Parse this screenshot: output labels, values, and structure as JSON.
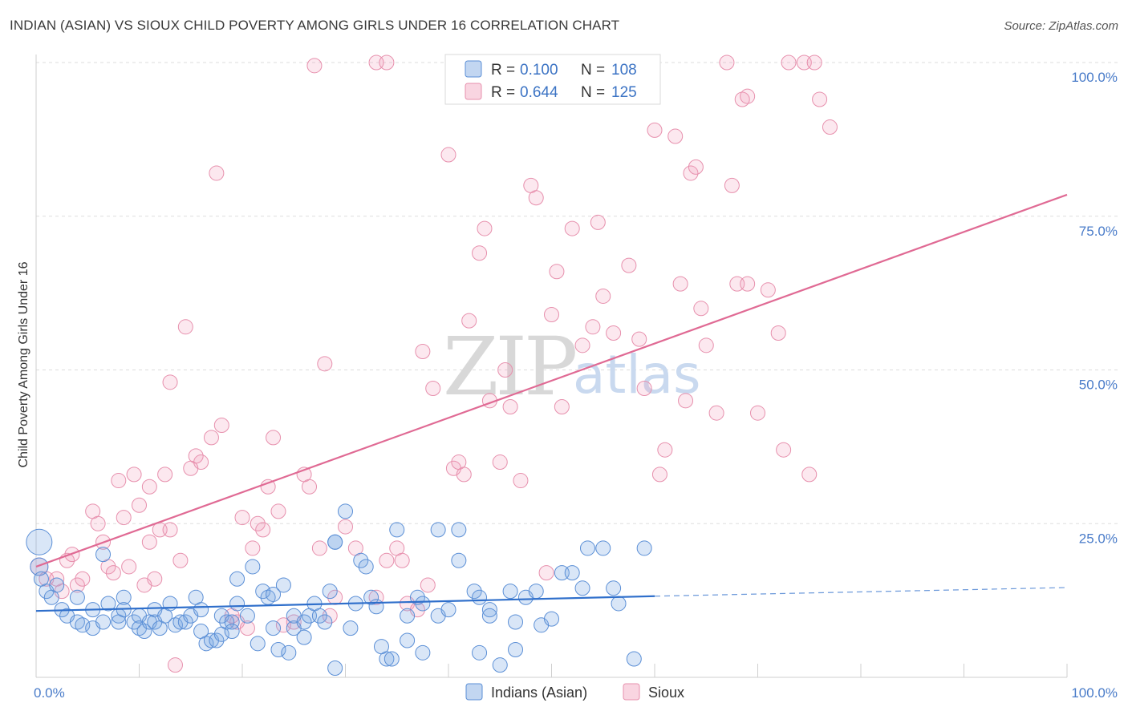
{
  "title": "INDIAN (ASIAN) VS SIOUX CHILD POVERTY AMONG GIRLS UNDER 16 CORRELATION CHART",
  "source": "Source: ZipAtlas.com",
  "watermark": {
    "zip": "ZIP",
    "atlas": "atlas"
  },
  "colors": {
    "indians_fill": "rgba(120,165,225,0.28)",
    "indians_stroke": "#5b8fd6",
    "indians_line": "#2f6fcb",
    "sioux_fill": "rgba(240,150,180,0.22)",
    "sioux_stroke": "#e790ad",
    "sioux_line": "#e06a94",
    "grid": "#dddddd",
    "tick": "#4a7cc9"
  },
  "legend": {
    "rows": [
      {
        "r_label": "R = ",
        "r_value": "0.100",
        "n_label": "N = ",
        "n_value": "108"
      },
      {
        "r_label": "R = ",
        "r_value": "0.644",
        "n_label": "N = ",
        "n_value": "125"
      }
    ]
  },
  "bottom_legend": [
    "Indians (Asian)",
    "Sioux"
  ],
  "chart_data": {
    "type": "scatter",
    "title": "INDIAN (ASIAN) VS SIOUX CHILD POVERTY AMONG GIRLS UNDER 16 CORRELATION CHART",
    "xlabel": "",
    "ylabel": "Child Poverty Among Girls Under 16",
    "xlim": [
      0,
      100
    ],
    "ylim": [
      0,
      100
    ],
    "x_tick_labels": [
      "0.0%",
      "100.0%"
    ],
    "y_tick_labels": [
      "25.0%",
      "50.0%",
      "75.0%",
      "100.0%"
    ],
    "y_ticks": [
      25,
      50,
      75,
      100
    ],
    "grid": true,
    "legend_position": "top-center",
    "series": [
      {
        "name": "Indians (Asian)",
        "R": 0.1,
        "N": 108,
        "trend": {
          "x0": 0,
          "y0": 10.8,
          "x1": 60,
          "y1": 13.2,
          "dash_x1": 100,
          "dash_y1": 14.6
        },
        "points": [
          [
            0.3,
            22,
            16
          ],
          [
            0.3,
            18,
            11
          ],
          [
            0.5,
            16,
            9
          ],
          [
            1,
            14,
            9
          ],
          [
            1.5,
            13,
            9
          ],
          [
            2,
            15,
            9
          ],
          [
            2.5,
            11,
            9
          ],
          [
            3,
            10,
            9
          ],
          [
            4,
            13,
            9
          ],
          [
            4,
            9,
            9
          ],
          [
            4.5,
            8.5,
            9
          ],
          [
            5.5,
            8,
            9
          ],
          [
            5.5,
            11,
            9
          ],
          [
            6.5,
            9,
            9
          ],
          [
            6.5,
            20,
            9
          ],
          [
            7,
            12,
            9
          ],
          [
            8,
            10,
            9
          ],
          [
            8,
            9,
            9
          ],
          [
            8.5,
            13,
            9
          ],
          [
            8.5,
            11,
            9
          ],
          [
            9.5,
            9,
            9
          ],
          [
            10,
            10,
            9
          ],
          [
            10,
            8,
            9
          ],
          [
            10.5,
            7.5,
            9
          ],
          [
            11,
            9,
            9
          ],
          [
            11.5,
            11,
            9
          ],
          [
            11.5,
            9,
            9
          ],
          [
            12,
            8,
            9
          ],
          [
            12.5,
            10,
            9
          ],
          [
            13.5,
            8.5,
            9
          ],
          [
            13,
            12,
            9
          ],
          [
            14,
            9,
            9
          ],
          [
            14.5,
            9,
            9
          ],
          [
            15,
            10,
            9
          ],
          [
            15.5,
            13,
            9
          ],
          [
            16,
            11,
            9
          ],
          [
            16,
            7.5,
            9
          ],
          [
            16.5,
            5.5,
            9
          ],
          [
            17,
            6,
            9
          ],
          [
            17.5,
            6,
            9
          ],
          [
            18,
            7,
            9
          ],
          [
            18,
            10,
            9
          ],
          [
            18.5,
            9,
            9
          ],
          [
            19,
            9,
            9
          ],
          [
            19,
            7.5,
            9
          ],
          [
            19.5,
            12,
            9
          ],
          [
            19.5,
            16,
            9
          ],
          [
            20.5,
            10,
            9
          ],
          [
            21,
            18,
            9
          ],
          [
            21.5,
            5.5,
            9
          ],
          [
            22,
            14,
            9
          ],
          [
            22.5,
            13,
            9
          ],
          [
            23,
            13.5,
            9
          ],
          [
            23,
            8,
            9
          ],
          [
            23.5,
            4.5,
            9
          ],
          [
            24,
            15,
            9
          ],
          [
            24.5,
            4,
            9
          ],
          [
            25,
            8,
            9
          ],
          [
            25,
            10,
            9
          ],
          [
            26,
            9,
            9
          ],
          [
            26,
            6.5,
            9
          ],
          [
            26.5,
            10,
            9
          ],
          [
            27,
            12,
            9
          ],
          [
            27.5,
            10,
            9
          ],
          [
            28,
            9,
            9
          ],
          [
            28.5,
            14,
            9
          ],
          [
            29,
            1.5,
            9
          ],
          [
            29,
            22,
            9
          ],
          [
            29,
            22,
            9
          ],
          [
            30,
            27,
            9
          ],
          [
            30.5,
            8,
            9
          ],
          [
            31,
            12,
            9
          ],
          [
            31.5,
            19,
            9
          ],
          [
            32,
            18,
            9
          ],
          [
            32.5,
            13,
            9
          ],
          [
            33,
            11.5,
            9
          ],
          [
            33.5,
            5,
            9
          ],
          [
            34,
            3,
            9
          ],
          [
            34.5,
            3,
            9
          ],
          [
            35,
            24,
            9
          ],
          [
            36,
            10,
            9
          ],
          [
            36,
            6,
            9
          ],
          [
            37,
            13,
            9
          ],
          [
            37.5,
            4,
            9
          ],
          [
            37.5,
            12,
            9
          ],
          [
            39,
            24,
            9
          ],
          [
            39,
            10,
            9
          ],
          [
            40,
            11,
            9
          ],
          [
            41,
            19,
            9
          ],
          [
            41,
            24,
            9
          ],
          [
            42.5,
            14,
            9
          ],
          [
            43,
            13,
            9
          ],
          [
            43,
            4,
            9
          ],
          [
            44,
            11,
            9
          ],
          [
            44,
            10,
            9
          ],
          [
            45,
            2,
            9
          ],
          [
            46,
            14,
            9
          ],
          [
            46.5,
            9,
            9
          ],
          [
            46.5,
            4.5,
            9
          ],
          [
            47.5,
            13,
            9
          ],
          [
            48.5,
            14,
            9
          ],
          [
            49,
            8.5,
            9
          ],
          [
            50,
            9.5,
            9
          ],
          [
            51,
            17,
            9
          ],
          [
            52,
            17,
            9
          ],
          [
            53,
            14.5,
            9
          ],
          [
            53.5,
            21,
            9
          ],
          [
            55,
            21,
            9
          ],
          [
            56,
            14.5,
            9
          ],
          [
            56.5,
            12,
            9
          ],
          [
            58,
            3,
            9
          ],
          [
            59,
            21,
            9
          ]
        ]
      },
      {
        "name": "Sioux",
        "R": 0.644,
        "N": 125,
        "trend": {
          "x0": 0,
          "y0": 18.0,
          "x1": 100,
          "y1": 78.5
        },
        "points": [
          [
            0.3,
            18,
            11
          ],
          [
            1,
            16,
            9
          ],
          [
            2,
            16,
            9
          ],
          [
            2.5,
            14,
            9
          ],
          [
            3,
            19,
            9
          ],
          [
            3.5,
            20,
            9
          ],
          [
            4,
            15,
            9
          ],
          [
            4.5,
            16,
            9
          ],
          [
            5.5,
            27,
            9
          ],
          [
            6,
            25,
            9
          ],
          [
            6.5,
            22,
            9
          ],
          [
            7,
            18,
            9
          ],
          [
            7.5,
            17,
            9
          ],
          [
            8,
            32,
            9
          ],
          [
            8.5,
            26,
            9
          ],
          [
            9,
            18,
            9
          ],
          [
            9.5,
            33,
            9
          ],
          [
            10,
            28,
            9
          ],
          [
            10.5,
            15,
            9
          ],
          [
            11,
            22,
            9
          ],
          [
            11,
            31,
            9
          ],
          [
            11.5,
            16,
            9
          ],
          [
            12,
            24,
            9
          ],
          [
            12.5,
            33,
            9
          ],
          [
            13,
            24,
            9
          ],
          [
            13,
            48,
            9
          ],
          [
            13.5,
            2,
            9
          ],
          [
            14,
            19,
            9
          ],
          [
            14.5,
            57,
            9
          ],
          [
            15,
            34,
            9
          ],
          [
            15.5,
            36,
            9
          ],
          [
            16,
            35,
            9
          ],
          [
            17,
            39,
            9
          ],
          [
            17.5,
            82,
            9
          ],
          [
            18,
            41,
            9
          ],
          [
            19,
            10,
            9
          ],
          [
            19.5,
            9,
            9
          ],
          [
            20,
            26,
            9
          ],
          [
            20.5,
            8,
            9
          ],
          [
            21,
            21,
            9
          ],
          [
            21.5,
            25,
            9
          ],
          [
            22,
            24,
            9
          ],
          [
            22.5,
            31,
            9
          ],
          [
            23,
            39,
            9
          ],
          [
            23.5,
            27,
            9
          ],
          [
            24,
            8.5,
            9
          ],
          [
            25,
            9,
            9
          ],
          [
            26,
            33,
            9
          ],
          [
            26.5,
            31,
            9
          ],
          [
            27,
            99.5,
            9
          ],
          [
            27.5,
            21,
            9
          ],
          [
            28,
            51,
            9
          ],
          [
            28.5,
            10,
            9
          ],
          [
            29,
            13,
            9
          ],
          [
            30,
            24.5,
            9
          ],
          [
            31,
            21,
            9
          ],
          [
            33,
            100,
            9
          ],
          [
            33,
            13,
            9
          ],
          [
            34,
            100,
            9
          ],
          [
            34,
            19,
            9
          ],
          [
            35,
            21,
            9
          ],
          [
            35.5,
            19,
            9
          ],
          [
            36,
            12,
            9
          ],
          [
            37,
            11,
            9
          ],
          [
            37.5,
            53,
            9
          ],
          [
            38,
            15,
            9
          ],
          [
            38.5,
            47,
            9
          ],
          [
            40,
            85,
            9
          ],
          [
            40.5,
            34,
            9
          ],
          [
            41,
            35,
            9
          ],
          [
            41.5,
            33,
            9
          ],
          [
            42,
            58,
            9
          ],
          [
            43,
            69,
            9
          ],
          [
            43.5,
            73,
            9
          ],
          [
            44,
            45,
            9
          ],
          [
            45,
            35,
            9
          ],
          [
            45.5,
            50,
            9
          ],
          [
            46,
            44,
            9
          ],
          [
            47,
            32,
            9
          ],
          [
            48,
            80,
            9
          ],
          [
            48.5,
            78,
            9
          ],
          [
            49.5,
            17,
            9
          ],
          [
            50,
            59,
            9
          ],
          [
            50.5,
            66,
            9
          ],
          [
            51,
            44,
            9
          ],
          [
            52,
            73,
            9
          ],
          [
            53,
            54,
            9
          ],
          [
            54,
            57,
            9
          ],
          [
            54.5,
            74,
            9
          ],
          [
            55,
            62,
            9
          ],
          [
            56,
            56,
            9
          ],
          [
            57,
            100,
            9
          ],
          [
            57.5,
            67,
            9
          ],
          [
            58.5,
            55,
            9
          ],
          [
            59,
            47,
            9
          ],
          [
            60,
            89,
            9
          ],
          [
            60.5,
            33,
            9
          ],
          [
            61,
            37,
            9
          ],
          [
            62,
            88,
            9
          ],
          [
            62.5,
            64,
            9
          ],
          [
            63,
            45,
            9
          ],
          [
            63.5,
            82,
            9
          ],
          [
            64,
            83,
            9
          ],
          [
            64.5,
            60,
            9
          ],
          [
            65,
            54,
            9
          ],
          [
            66,
            43,
            9
          ],
          [
            67,
            100,
            9
          ],
          [
            67.5,
            80,
            9
          ],
          [
            68,
            64,
            9
          ],
          [
            68.5,
            94,
            9
          ],
          [
            69,
            94.5,
            9
          ],
          [
            69,
            64,
            9
          ],
          [
            70,
            43,
            9
          ],
          [
            71,
            63,
            9
          ],
          [
            72,
            56,
            9
          ],
          [
            72.5,
            37,
            9
          ],
          [
            73,
            100,
            9
          ],
          [
            74.5,
            100,
            9
          ],
          [
            75,
            33,
            9
          ],
          [
            75.5,
            100,
            9
          ],
          [
            76,
            94,
            9
          ],
          [
            77,
            89.5,
            9
          ]
        ]
      }
    ]
  }
}
